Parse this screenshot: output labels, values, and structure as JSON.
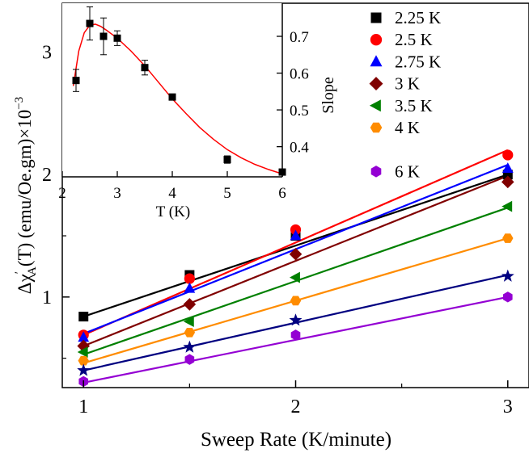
{
  "chart_data": [
    {
      "id": "main",
      "type": "scatter",
      "xlabel": "Sweep Rate (K/minute)",
      "ylabel": "Δχ'A(T) (emu/Oe.gm)×10⁻³",
      "ylabel_parts": {
        "delta": "Δχ",
        "prime": "′",
        "sub": "A",
        "rest": "(T) (emu/Oe.gm)×10",
        "exp": "−3"
      },
      "xlim": [
        0.9,
        3.1
      ],
      "ylim": [
        0.26,
        3.4
      ],
      "xticks": [
        1,
        2,
        3
      ],
      "yticks": [
        1,
        2,
        3
      ],
      "grid": false,
      "legend": "top-right",
      "series": [
        {
          "name": "2.25 K",
          "marker": "square",
          "color": "#000000",
          "x": [
            1,
            1.5,
            2,
            3
          ],
          "y": [
            0.84,
            1.18,
            1.5,
            2.0
          ],
          "fit": [
            0.84,
            2.0
          ]
        },
        {
          "name": "2.5 K",
          "marker": "circle",
          "color": "#ff0000",
          "x": [
            1,
            1.5,
            2,
            3
          ],
          "y": [
            0.69,
            1.15,
            1.55,
            2.16
          ],
          "fit": [
            0.69,
            2.2
          ]
        },
        {
          "name": "2.75 K",
          "marker": "triangle-up",
          "color": "#0000ff",
          "x": [
            1,
            1.5,
            2,
            3
          ],
          "y": [
            0.67,
            1.07,
            1.5,
            2.05
          ],
          "fit": [
            0.7,
            2.08
          ]
        },
        {
          "name": "3 K",
          "marker": "diamond",
          "color": "#800000",
          "x": [
            1,
            1.5,
            2,
            3
          ],
          "y": [
            0.6,
            0.94,
            1.35,
            1.94
          ],
          "fit": [
            0.6,
            1.99
          ]
        },
        {
          "name": "3.5 K",
          "marker": "triangle-left",
          "color": "#008000",
          "x": [
            1,
            1.5,
            2,
            3
          ],
          "y": [
            0.55,
            0.8,
            1.16,
            1.74
          ],
          "fit": [
            0.53,
            1.73
          ]
        },
        {
          "name": "4 K",
          "marker": "hexagon-flat",
          "color": "#ff8c00",
          "x": [
            1,
            1.5,
            2,
            3
          ],
          "y": [
            0.48,
            0.71,
            0.97,
            1.48
          ],
          "fit": [
            0.46,
            1.48
          ]
        },
        {
          "name": "",
          "marker": "star",
          "color": "#000080",
          "x": [
            1,
            1.5,
            2,
            3
          ],
          "y": [
            0.4,
            0.59,
            0.81,
            1.17
          ],
          "fit": [
            0.4,
            1.18
          ]
        },
        {
          "name": "6 K",
          "marker": "hexagon",
          "color": "#9400d3",
          "x": [
            1,
            1.5,
            2,
            3
          ],
          "y": [
            0.31,
            0.49,
            0.69,
            1.0
          ],
          "fit": [
            0.3,
            1.0
          ]
        }
      ]
    },
    {
      "id": "inset",
      "type": "scatter",
      "xlabel": "T (K)",
      "ylabel": "Slope",
      "xlim": [
        2,
        6
      ],
      "ylim": [
        0.318,
        0.79
      ],
      "xticks": [
        2,
        3,
        4,
        5,
        6
      ],
      "yticks": [
        0.4,
        0.5,
        0.6,
        0.7
      ],
      "y_axis_side": "right",
      "series": [
        {
          "name": "",
          "marker": "square",
          "color": "#000000",
          "x": [
            2.25,
            2.5,
            2.75,
            3,
            3.5,
            4,
            5,
            6
          ],
          "y": [
            0.58,
            0.735,
            0.7,
            0.695,
            0.615,
            0.535,
            0.365,
            0.331
          ],
          "yerr": [
            0.03,
            0.045,
            0.05,
            0.02,
            0.02,
            0.005,
            0.01,
            0.008
          ]
        }
      ],
      "fit_curve": {
        "color": "#ff0000",
        "x": [
          2.2,
          2.3,
          2.4,
          2.5,
          2.6,
          2.7,
          2.8,
          3.0,
          3.25,
          3.5,
          3.75,
          4.0,
          4.25,
          4.5,
          4.75,
          5.0,
          5.25,
          5.5,
          5.75,
          6.0
        ],
        "y": [
          0.565,
          0.66,
          0.71,
          0.73,
          0.733,
          0.727,
          0.717,
          0.695,
          0.66,
          0.62,
          0.575,
          0.53,
          0.49,
          0.452,
          0.42,
          0.392,
          0.37,
          0.352,
          0.338,
          0.326
        ]
      }
    }
  ]
}
